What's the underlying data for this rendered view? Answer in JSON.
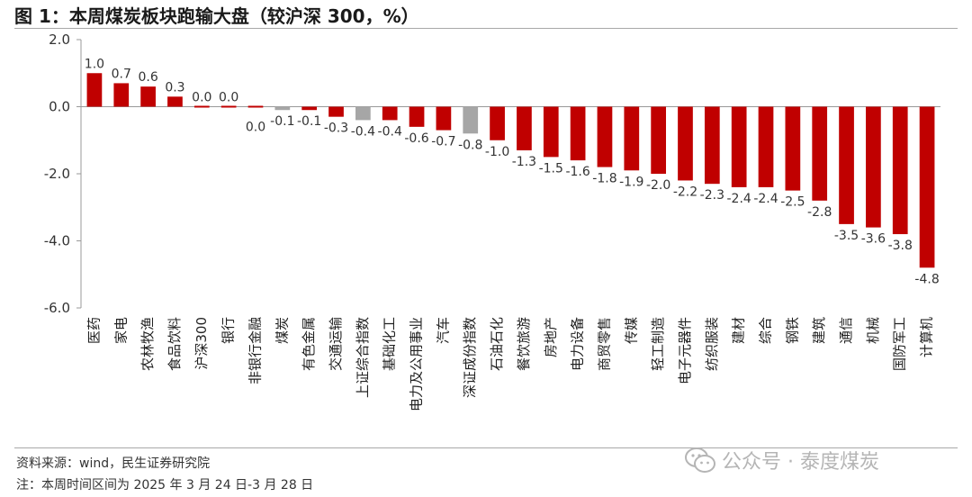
{
  "title": "图 1：本周煤炭板块跑输大盘（较沪深 300，%）",
  "source": "资料来源：wind，民生证券研究院",
  "note": "注：本周时间区间为 2025 年 3 月 24 日-3 月 28 日",
  "watermark": "公众号 · 泰度煤炭",
  "watermark_icon": "wechat-icon",
  "colors": {
    "bar_default": "#c00000",
    "bar_highlight": "#a6a6a6",
    "axis": "#999999"
  },
  "chart_data": {
    "type": "bar",
    "categories": [
      "医药",
      "家电",
      "农林牧渔",
      "食品饮料",
      "沪深300",
      "银行",
      "非银行金融",
      "煤炭",
      "有色金属",
      "交通运输",
      "上证综合指数",
      "基础化工",
      "电力及公用事业",
      "汽车",
      "深证成份指数",
      "石油石化",
      "餐饮旅游",
      "房地产",
      "电力设备",
      "商贸零售",
      "传媒",
      "轻工制造",
      "电子元器件",
      "纺织服装",
      "建材",
      "综合",
      "钢铁",
      "建筑",
      "通信",
      "机械",
      "国防军工",
      "计算机"
    ],
    "values": [
      1.0,
      0.7,
      0.6,
      0.3,
      0.0,
      0.0,
      0.0,
      -0.1,
      -0.1,
      -0.3,
      -0.4,
      -0.4,
      -0.6,
      -0.7,
      -0.8,
      -1.0,
      -1.3,
      -1.5,
      -1.6,
      -1.8,
      -1.9,
      -2.0,
      -2.2,
      -2.3,
      -2.4,
      -2.4,
      -2.5,
      -2.8,
      -3.5,
      -3.6,
      -3.8,
      -4.8
    ],
    "data_labels": [
      "1.0",
      "0.7",
      "0.6",
      "0.3",
      "0.0",
      "0.0",
      "0.0",
      "-0.1",
      "-0.1",
      "-0.3",
      "-0.4",
      "-0.4",
      "-0.6",
      "-0.7",
      "-0.8",
      "-1.0",
      "-1.3",
      "-1.5",
      "-1.6",
      "-1.8",
      "-1.9",
      "-2.0",
      "-2.2",
      "-2.3",
      "-2.4",
      "-2.4",
      "-2.5",
      "-2.8",
      "-3.5",
      "-3.6",
      "-3.8",
      "-4.8"
    ],
    "highlight": [
      "煤炭",
      "上证综合指数",
      "深证成份指数"
    ],
    "ylim": [
      -6.0,
      2.0
    ],
    "yticks": [
      2.0,
      0.0,
      -2.0,
      -4.0,
      -6.0
    ],
    "ytick_labels": [
      "2.0",
      "0.0",
      "-2.0",
      "-4.0",
      "-6.0"
    ],
    "xlabel": "",
    "ylabel": "",
    "grid": false,
    "legend": "none"
  }
}
